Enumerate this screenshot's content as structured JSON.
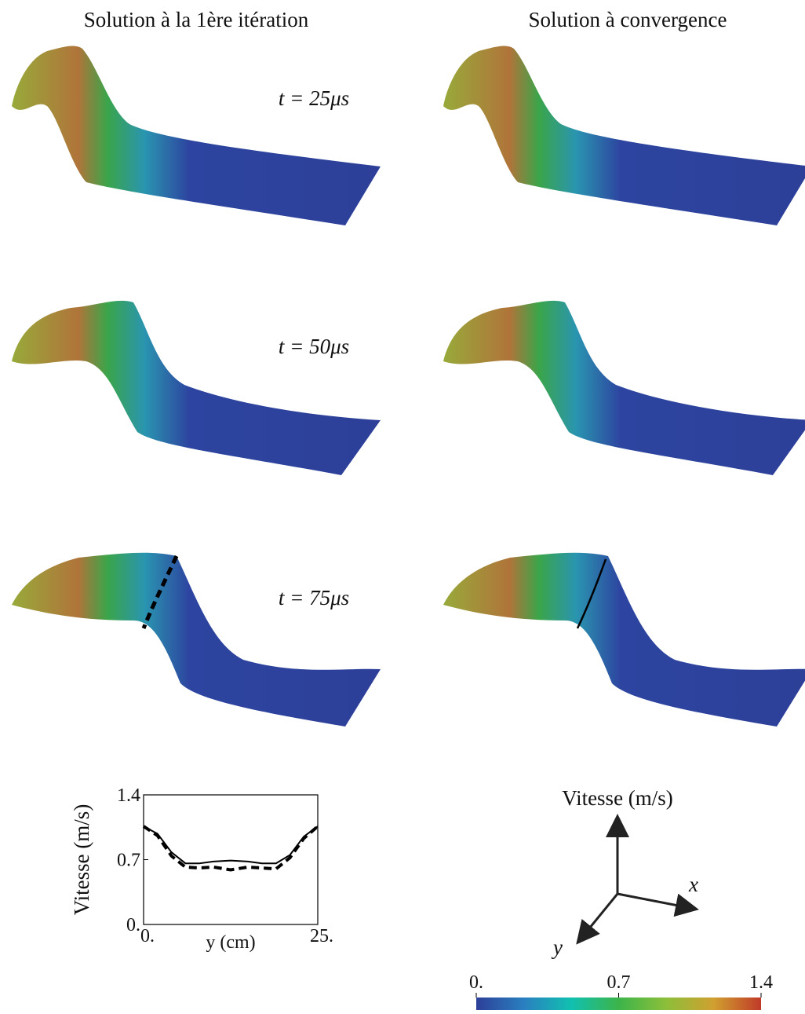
{
  "columns": [
    "Solution à la 1ère itération",
    "Solution à convergence"
  ],
  "times": [
    "t = 25μs",
    "t = 50μs",
    "t = 75μs"
  ],
  "chart_data": {
    "type": "line",
    "ylabel": "Vitesse (m/s)",
    "xlabel": "y (cm)",
    "x": [
      0,
      2,
      4,
      6,
      8,
      10,
      12.5,
      15,
      17,
      19,
      21,
      23,
      25
    ],
    "series": [
      {
        "color": "#000000",
        "style": "solid",
        "values": [
          1.06,
          0.98,
          0.78,
          0.66,
          0.66,
          0.68,
          0.69,
          0.68,
          0.66,
          0.66,
          0.75,
          0.95,
          1.06
        ]
      },
      {
        "color": "#000000",
        "style": "dashed",
        "values": [
          1.06,
          0.96,
          0.74,
          0.62,
          0.61,
          0.62,
          0.59,
          0.62,
          0.61,
          0.6,
          0.72,
          0.93,
          1.06
        ]
      }
    ],
    "xlim": [
      0,
      25
    ],
    "ylim": [
      0,
      1.4
    ],
    "xticks": [
      {
        "value": 0,
        "label": "0."
      },
      {
        "value": 25,
        "label": "25."
      }
    ],
    "yticks": [
      {
        "value": 0,
        "label": "0."
      },
      0.7,
      1.4
    ]
  },
  "colorbar": {
    "title": "Vitesse (m/s)",
    "range": [
      0,
      1.4
    ],
    "ticks": [
      {
        "value": 0,
        "label": "0."
      },
      0.7,
      1.4
    ],
    "colors": [
      "#2d3f98",
      "#2a7fc0",
      "#11c0b0",
      "#3cb44a",
      "#8cbf3a",
      "#d0a030",
      "#c03a28"
    ]
  },
  "axes": {
    "x": "x⃗",
    "y": "y⃗"
  }
}
